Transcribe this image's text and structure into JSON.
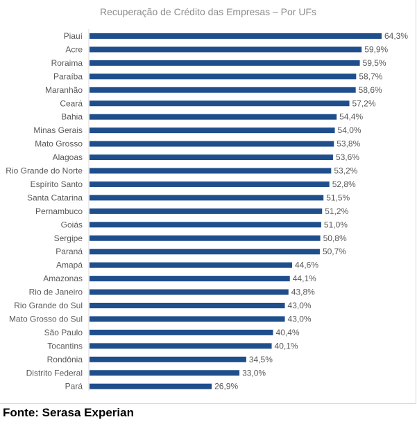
{
  "chart_data": {
    "type": "bar",
    "orientation": "horizontal",
    "title": "Recuperação de Crédito das Empresas – Por UFs",
    "categories": [
      "Piauí",
      "Acre",
      "Roraima",
      "Paraíba",
      "Maranhão",
      "Ceará",
      "Bahia",
      "Minas Gerais",
      "Mato Grosso",
      "Alagoas",
      "Rio Grande do Norte",
      "Espírito Santo",
      "Santa Catarina",
      "Pernambuco",
      "Goiás",
      "Sergipe",
      "Paraná",
      "Amapá",
      "Amazonas",
      "Rio de Janeiro",
      "Rio Grande do Sul",
      "Mato Grosso do Sul",
      "São Paulo",
      "Tocantins",
      "Rondônia",
      "Distrito Federal",
      "Pará"
    ],
    "values": [
      64.3,
      59.9,
      59.5,
      58.7,
      58.6,
      57.2,
      54.4,
      54.0,
      53.8,
      53.6,
      53.2,
      52.8,
      51.5,
      51.2,
      51.0,
      50.8,
      50.7,
      44.6,
      44.1,
      43.8,
      43.0,
      43.0,
      40.4,
      40.1,
      34.5,
      33.0,
      26.9
    ],
    "data_labels": [
      "64,3%",
      "59,9%",
      "59,5%",
      "58,7%",
      "58,6%",
      "57,2%",
      "54,4%",
      "54,0%",
      "53,8%",
      "53,6%",
      "53,2%",
      "52,8%",
      "51,5%",
      "51,2%",
      "51,0%",
      "50,8%",
      "50,7%",
      "44,6%",
      "44,1%",
      "43,8%",
      "43,0%",
      "43,0%",
      "40,4%",
      "40,1%",
      "34,5%",
      "33,0%",
      "26,9%"
    ],
    "xlim": [
      0,
      64.3
    ],
    "grid": false,
    "legend": "none",
    "bar_color": "#1f4e8c",
    "title_color": "#8c8c8c",
    "text_color": "#595959"
  },
  "source": "Fonte: Serasa Experian"
}
